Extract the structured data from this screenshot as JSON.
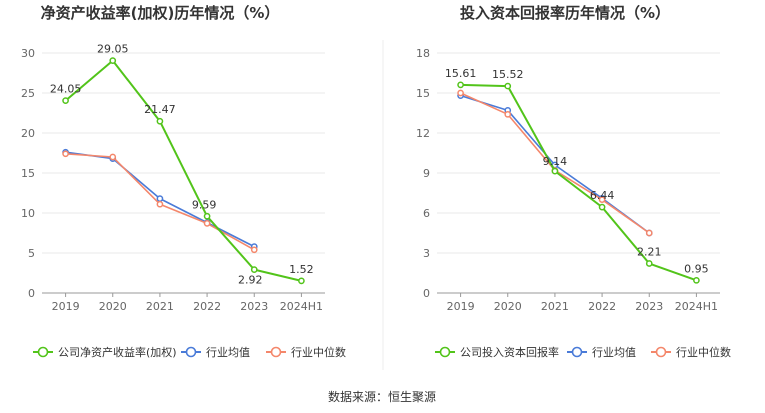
{
  "colors": {
    "company": "#52c41a",
    "industry_avg": "#4a7bd8",
    "industry_median": "#f4876b",
    "grid": "#e8e8e8",
    "axis": "#999999"
  },
  "source_text": "数据来源：恒生聚源",
  "chart_data": [
    {
      "type": "line",
      "title": "净资产收益率(加权)历年情况（%）",
      "categories": [
        "2019",
        "2020",
        "2021",
        "2022",
        "2023",
        "2024H1"
      ],
      "ylim": [
        0,
        30
      ],
      "yticks": [
        0,
        5,
        10,
        15,
        20,
        25,
        30
      ],
      "grid": true,
      "legend_position": "bottom",
      "series": [
        {
          "name": "公司净资产收益率(加权)",
          "role": "company",
          "values": [
            24.05,
            29.05,
            21.47,
            9.59,
            2.92,
            1.52
          ],
          "labels": [
            "24.05",
            "29.05",
            "21.47",
            "9.59",
            "2.92",
            "1.52"
          ]
        },
        {
          "name": "行业均值",
          "role": "industry_avg",
          "values": [
            17.6,
            16.8,
            11.8,
            8.8,
            5.8,
            null
          ]
        },
        {
          "name": "行业中位数",
          "role": "industry_median",
          "values": [
            17.4,
            17.0,
            11.1,
            8.7,
            5.4,
            null
          ]
        }
      ]
    },
    {
      "type": "line",
      "title": "投入资本回报率历年情况（%）",
      "categories": [
        "2019",
        "2020",
        "2021",
        "2022",
        "2023",
        "2024H1"
      ],
      "ylim": [
        0,
        18
      ],
      "yticks": [
        0,
        3,
        6,
        9,
        12,
        15,
        18
      ],
      "grid": true,
      "legend_position": "bottom",
      "series": [
        {
          "name": "公司投入资本回报率",
          "role": "company",
          "values": [
            15.61,
            15.52,
            9.14,
            6.44,
            2.21,
            0.95
          ],
          "labels": [
            "15.61",
            "15.52",
            "9.14",
            "6.44",
            "2.21",
            "0.95"
          ]
        },
        {
          "name": "行业均值",
          "role": "industry_avg",
          "values": [
            14.8,
            13.7,
            9.6,
            7.1,
            4.5,
            null
          ]
        },
        {
          "name": "行业中位数",
          "role": "industry_median",
          "values": [
            15.0,
            13.4,
            9.2,
            7.0,
            4.5,
            null
          ]
        }
      ]
    }
  ]
}
